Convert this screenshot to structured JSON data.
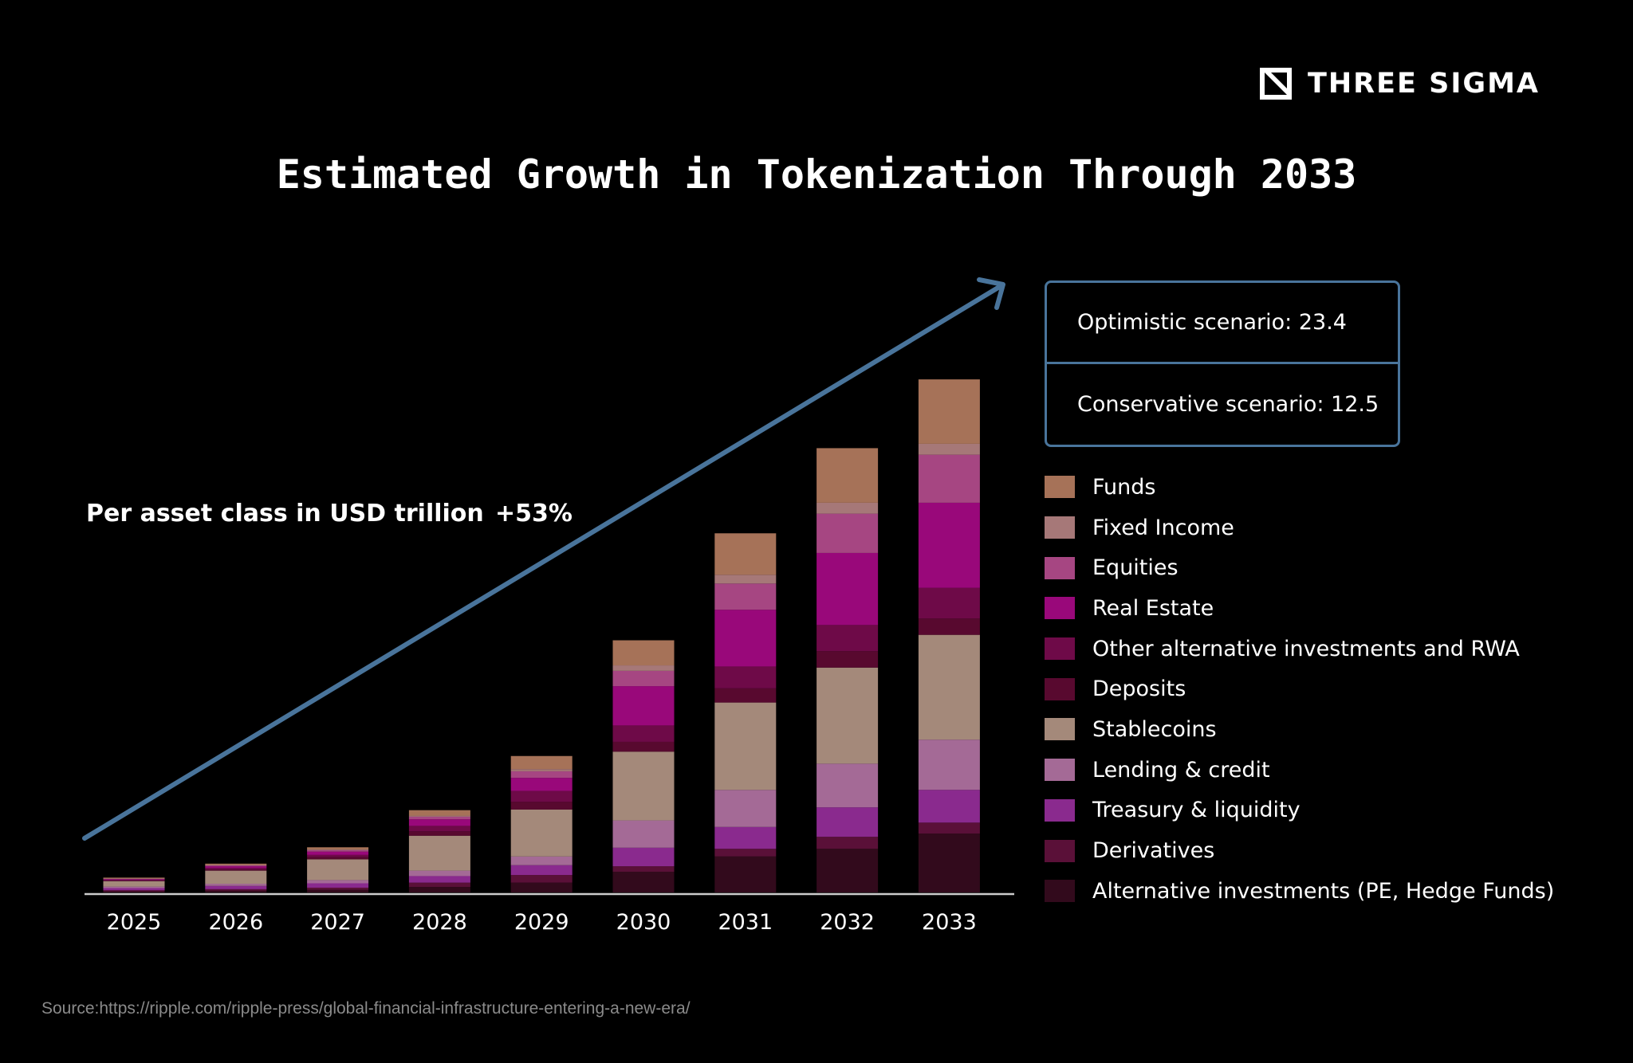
{
  "brand": {
    "name": "THREE SIGMA"
  },
  "title": "Estimated Growth in Tokenization Through 2033",
  "subtitle": "Per asset class in USD trillion",
  "growth_label": "+53%",
  "scenarios": {
    "optimistic": "Optimistic scenario: 23.4",
    "conservative": "Conservative scenario: 12.5"
  },
  "source": "Source:https://ripple.com/ripple-press/global-financial-infrastructure-entering-a-new-era/",
  "colors": {
    "background": "#000000",
    "arrow": "#49749b",
    "axis": "#cccccc"
  },
  "chart_data": {
    "type": "bar",
    "stacked": true,
    "title": "Estimated Growth in Tokenization Through 2033",
    "ylabel": "Per asset class in USD trillion",
    "ylim": [
      0,
      23.4
    ],
    "categories": [
      "2025",
      "2026",
      "2027",
      "2028",
      "2029",
      "2030",
      "2031",
      "2032",
      "2033"
    ],
    "series": [
      {
        "name": "Alternative investments (PE, Hedge Funds)",
        "color": "#320a1c",
        "values": [
          0.05,
          0.08,
          0.12,
          0.25,
          0.45,
          0.95,
          1.65,
          2.0,
          2.7
        ]
      },
      {
        "name": "Derivatives",
        "color": "#5a1038",
        "values": [
          0.05,
          0.07,
          0.1,
          0.2,
          0.35,
          0.25,
          0.35,
          0.55,
          0.5
        ]
      },
      {
        "name": "Treasury & liquidity",
        "color": "#8a2a8e",
        "values": [
          0.1,
          0.15,
          0.2,
          0.3,
          0.45,
          0.85,
          1.0,
          1.35,
          1.5
        ]
      },
      {
        "name": "Lending & credit",
        "color": "#a46a96",
        "values": [
          0.07,
          0.1,
          0.15,
          0.25,
          0.4,
          1.25,
          1.7,
          2.0,
          2.3
        ]
      },
      {
        "name": "Stablecoins",
        "color": "#a4897a",
        "values": [
          0.25,
          0.6,
          0.95,
          1.6,
          2.15,
          3.15,
          4.0,
          4.4,
          4.8
        ]
      },
      {
        "name": "Deposits",
        "color": "#58092f",
        "values": [
          0.02,
          0.05,
          0.1,
          0.2,
          0.35,
          0.45,
          0.65,
          0.75,
          0.75
        ]
      },
      {
        "name": "Other alternative investments and RWA",
        "color": "#6e0a48",
        "values": [
          0.03,
          0.07,
          0.1,
          0.25,
          0.5,
          0.75,
          1.0,
          1.2,
          1.4
        ]
      },
      {
        "name": "Real Estate",
        "color": "#99087a",
        "values": [
          0.04,
          0.08,
          0.15,
          0.3,
          0.6,
          1.8,
          2.6,
          3.3,
          3.9
        ]
      },
      {
        "name": "Equities",
        "color": "#a64682",
        "values": [
          0.02,
          0.04,
          0.07,
          0.12,
          0.3,
          0.7,
          1.2,
          1.8,
          2.2
        ]
      },
      {
        "name": "Fixed Income",
        "color": "#a67878",
        "values": [
          0.01,
          0.02,
          0.03,
          0.05,
          0.1,
          0.25,
          0.4,
          0.5,
          0.5
        ]
      },
      {
        "name": "Funds",
        "color": "#a67258",
        "values": [
          0.04,
          0.06,
          0.1,
          0.25,
          0.6,
          1.15,
          1.9,
          2.5,
          2.95
        ]
      }
    ],
    "legend": [
      {
        "name": "Funds",
        "color": "#a67258"
      },
      {
        "name": "Fixed Income",
        "color": "#a67878"
      },
      {
        "name": "Equities",
        "color": "#a64682"
      },
      {
        "name": "Real Estate",
        "color": "#99087a"
      },
      {
        "name": "Other alternative investments and RWA",
        "color": "#6e0a48"
      },
      {
        "name": "Deposits",
        "color": "#58092f"
      },
      {
        "name": "Stablecoins",
        "color": "#a4897a"
      },
      {
        "name": "Lending & credit",
        "color": "#a46a96"
      },
      {
        "name": "Treasury & liquidity",
        "color": "#8a2a8e"
      },
      {
        "name": "Derivatives",
        "color": "#5a1038"
      },
      {
        "name": "Alternative investments (PE, Hedge Funds)",
        "color": "#320a1c"
      }
    ],
    "annotations": [
      "+53%",
      "Optimistic scenario: 23.4",
      "Conservative scenario: 12.5"
    ]
  }
}
